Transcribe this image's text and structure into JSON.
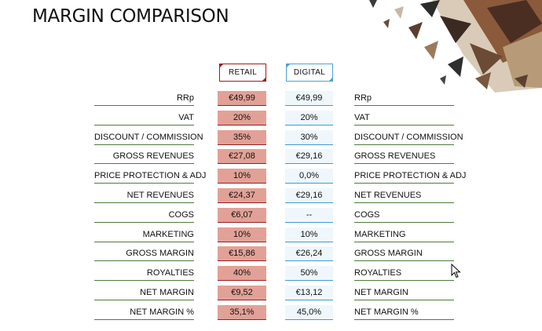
{
  "page": {
    "title": "MARGIN COMPARISON"
  },
  "columns": {
    "retail": "RETAIL",
    "digital": "DIGITAL"
  },
  "colors": {
    "retail_cell": "#e2a196",
    "retail_accent": "#9c1d22",
    "digital_cell": "#eff7fc",
    "digital_accent": "#4aa3d3",
    "row_rule": "#4e7d3a"
  },
  "rows": [
    {
      "label": "RRp",
      "retail": "€49,99",
      "digital": "€49,99",
      "label_right": "RRp"
    },
    {
      "label": "VAT",
      "retail": "20%",
      "digital": "20%",
      "label_right": "VAT"
    },
    {
      "label": "DISCOUNT / COMMISSION",
      "retail": "35%",
      "digital": "30%",
      "label_right": "DISCOUNT / COMMISSION"
    },
    {
      "label": "GROSS REVENUES",
      "retail": "€27,08",
      "digital": "€29,16",
      "label_right": "GROSS REVENUES"
    },
    {
      "label": "PRICE PROTECTION & ADJ",
      "retail": "10%",
      "digital": "0,0%",
      "label_right": "PRICE PROTECTION & ADJ"
    },
    {
      "label": "NET REVENUES",
      "retail": "€24,37",
      "digital": "€29,16",
      "label_right": "NET REVENUES"
    },
    {
      "label": "COGS",
      "retail": "€6,07",
      "digital": "--",
      "label_right": "COGS"
    },
    {
      "label": "MARKETING",
      "retail": "10%",
      "digital": "10%",
      "label_right": "MARKETING"
    },
    {
      "label": "GROSS MARGIN",
      "retail": "€15,86",
      "digital": "€26,24",
      "label_right": "GROSS MARGIN"
    },
    {
      "label": "ROYALTIES",
      "retail": "40%",
      "digital": "50%",
      "label_right": "ROYALTIES"
    },
    {
      "label": "NET MARGIN",
      "retail": "€9,52",
      "digital": "€13,12",
      "label_right": "NET MARGIN"
    },
    {
      "label": "NET MARGIN %",
      "retail": "35,1%",
      "digital": "45,0%",
      "label_right": "NET MARGIN %"
    }
  ]
}
